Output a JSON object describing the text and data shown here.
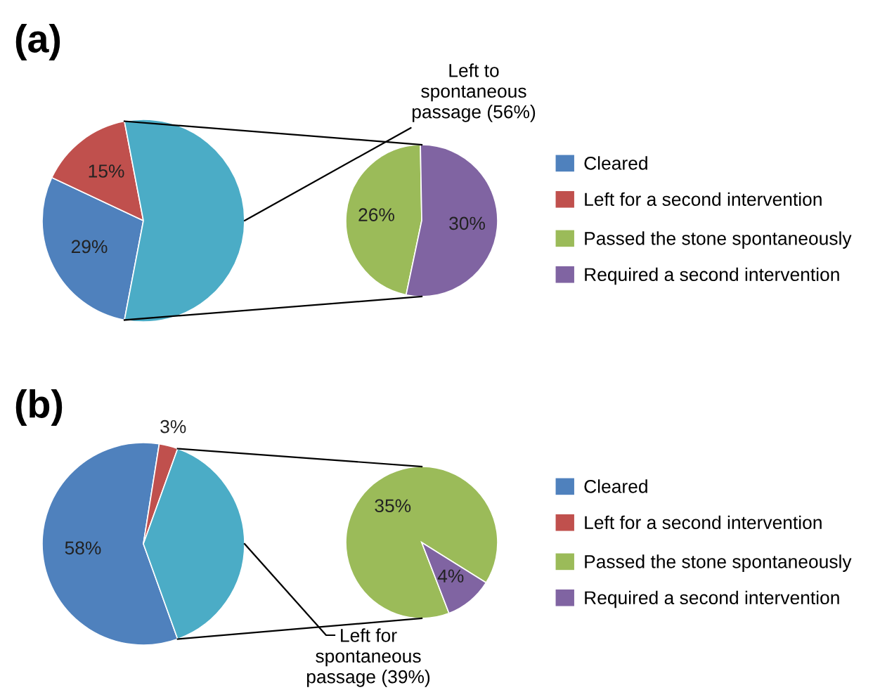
{
  "chart_data": [
    {
      "type": "pie",
      "title": "(a)",
      "categories": [
        "Cleared",
        "Left for a second intervention",
        null
      ],
      "values": [
        29,
        15,
        56
      ],
      "colors": [
        "#4f81bd",
        "#c0504d",
        "#4bacc6"
      ],
      "value_labels": [
        "29%",
        "15%",
        null
      ],
      "legend": "right",
      "annotations": [
        "Left to\nspontaneous\npassage (56%)"
      ]
    },
    {
      "type": "pie",
      "categories": [
        "Passed the stone spontaneously",
        "Required a second intervention"
      ],
      "values": [
        26,
        30
      ],
      "colors": [
        "#9bbb59",
        "#8064a2"
      ],
      "value_labels": [
        "26%",
        "30%"
      ],
      "legend": "right"
    },
    {
      "type": "pie",
      "title": "(b)",
      "categories": [
        "Cleared",
        "Left for a second intervention",
        null
      ],
      "values": [
        58,
        3,
        39
      ],
      "colors": [
        "#4f81bd",
        "#c0504d",
        "#4bacc6"
      ],
      "value_labels": [
        "58%",
        "3%",
        null
      ],
      "legend": "right",
      "annotations": [
        "Left for\nspontaneous\npassage (39%)"
      ]
    },
    {
      "type": "pie",
      "categories": [
        "Passed the stone spontaneously",
        "Required a second intervention"
      ],
      "values": [
        35,
        4
      ],
      "colors": [
        "#9bbb59",
        "#8064a2"
      ],
      "value_labels": [
        "35%",
        "4%"
      ],
      "legend": "right"
    }
  ]
}
